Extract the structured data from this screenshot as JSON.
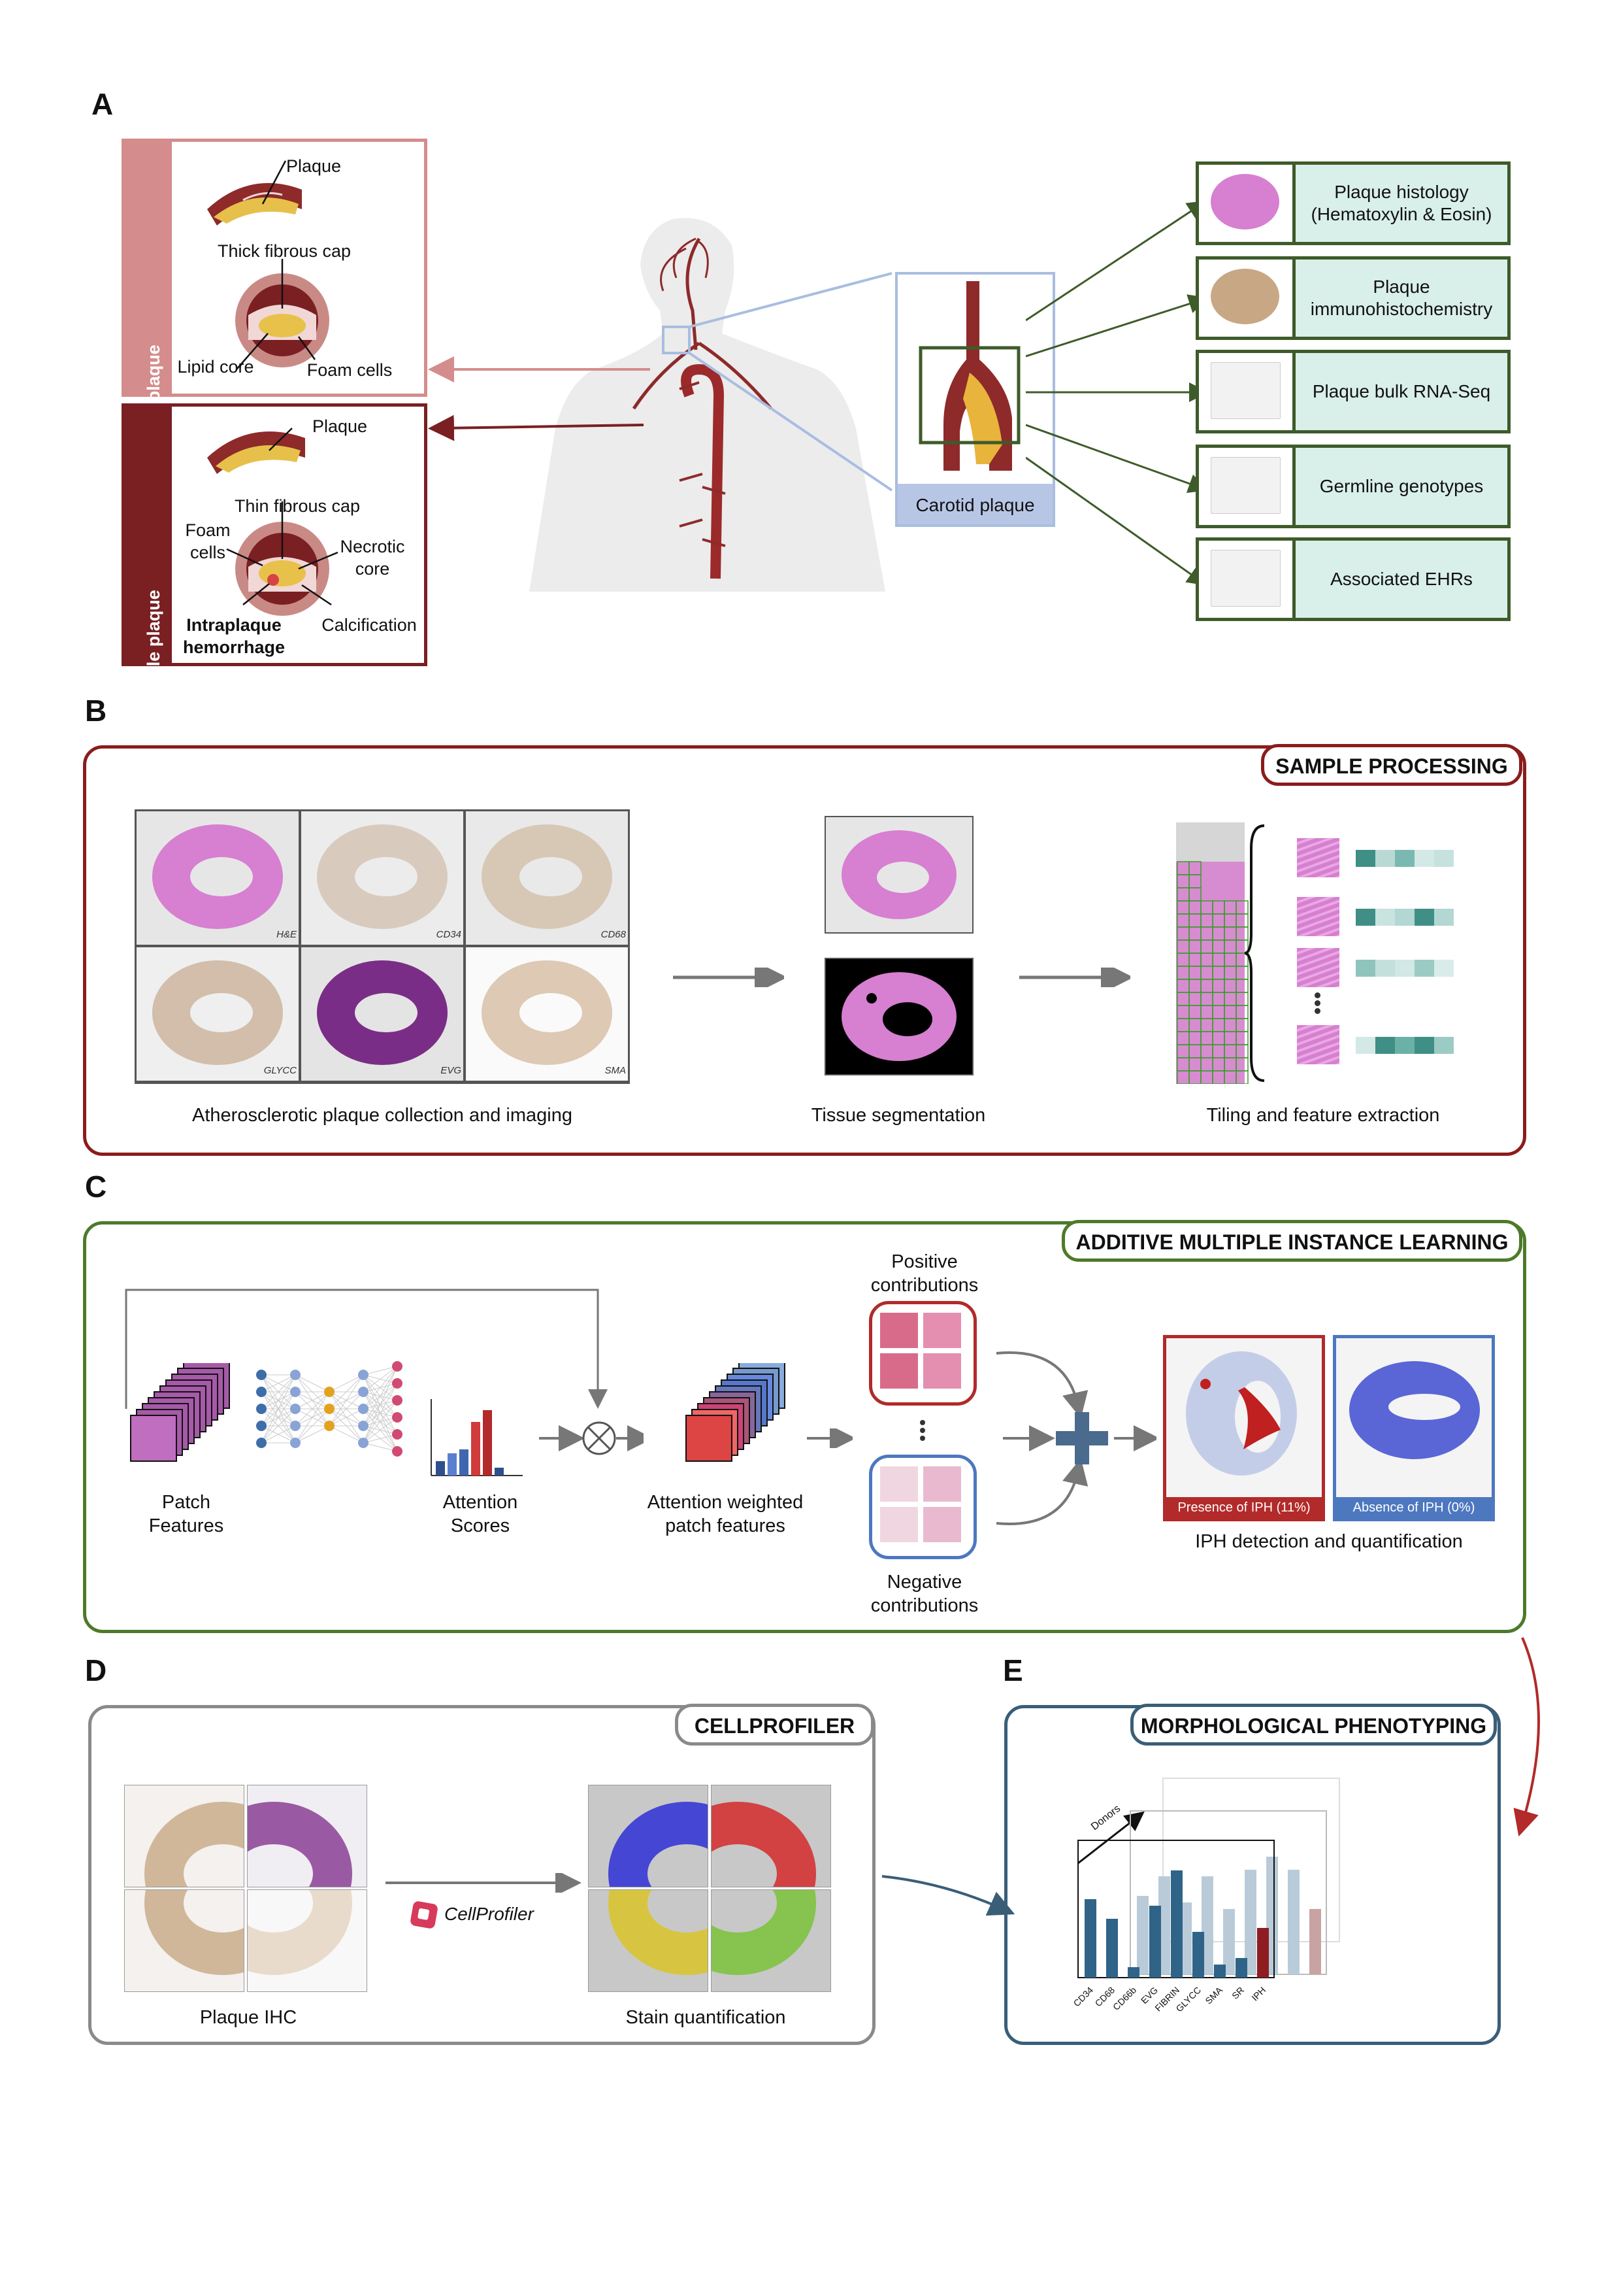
{
  "panels": {
    "a": "A",
    "b": "B",
    "c": "C",
    "d": "D",
    "e": "E"
  },
  "panel_a": {
    "stable_title": "Stable plaque",
    "vulnerable_title": "Vulnerable plaque",
    "stable_labels": {
      "plaque": "Plaque",
      "thick_cap": "Thick fibrous cap",
      "lipid_core": "Lipid core",
      "foam_cells": "Foam cells"
    },
    "vulnerable_labels": {
      "plaque": "Plaque",
      "thin_cap": "Thin fibrous cap",
      "foam_cells": "Foam\ncells",
      "necrotic_core": "Necrotic\ncore",
      "iph": "Intraplaque\nhemorrhage",
      "calcification": "Calcification"
    },
    "carotid_label": "Carotid plaque",
    "data_types": [
      "Plaque histology\n(Hematoxylin & Eosin)",
      "Plaque\nimmunohistochemistry",
      "Plaque bulk RNA-Seq",
      "Germline genotypes",
      "Associated EHRs"
    ]
  },
  "panel_b": {
    "header": "SAMPLE PROCESSING",
    "stains": [
      "H&E",
      "CD34",
      "CD68",
      "GLYCC",
      "EVG",
      "SMA"
    ],
    "captions": {
      "collection": "Atherosclerotic plaque collection and imaging",
      "segmentation": "Tissue segmentation",
      "tiling": "Tiling and feature extraction"
    }
  },
  "panel_c": {
    "header": "ADDITIVE MULTIPLE INSTANCE LEARNING",
    "patch_features": "Patch\nFeatures",
    "attention_scores": "Attention\nScores",
    "weighted_features": "Attention weighted\npatch features",
    "positive": "Positive\ncontributions",
    "negative": "Negative\ncontributions",
    "presence": "Presence of IPH (11%)",
    "absence": "Absence of IPH (0%)",
    "iph_caption": "IPH detection and quantification"
  },
  "panel_d": {
    "header": "CELLPROFILER",
    "logo_text": "CellProfiler",
    "plaque_ihc": "Plaque IHC",
    "stain_quant": "Stain quantification"
  },
  "panel_e": {
    "header": "MORPHOLOGICAL PHENOTYPING",
    "donors": "Donors",
    "categories": [
      "CD34",
      "CD68",
      "CD66b",
      "EVG",
      "FIBRIN",
      "GLYCC",
      "SMA",
      "SR",
      "IPH"
    ]
  },
  "colors": {
    "stable": "#d58c8c",
    "vulnerable": "#7a1f22",
    "green_dark": "#3e5b2a",
    "green_fill": "#d9efe9",
    "sample_red": "#8b1c1c",
    "aml_green": "#4d7a2a",
    "cell_gray": "#8a8a8a",
    "morph_blue": "#3a5e78",
    "bar_blue": "#2f6488",
    "bar_red": "#8e1d22",
    "he_pink": "#d77fd0"
  }
}
